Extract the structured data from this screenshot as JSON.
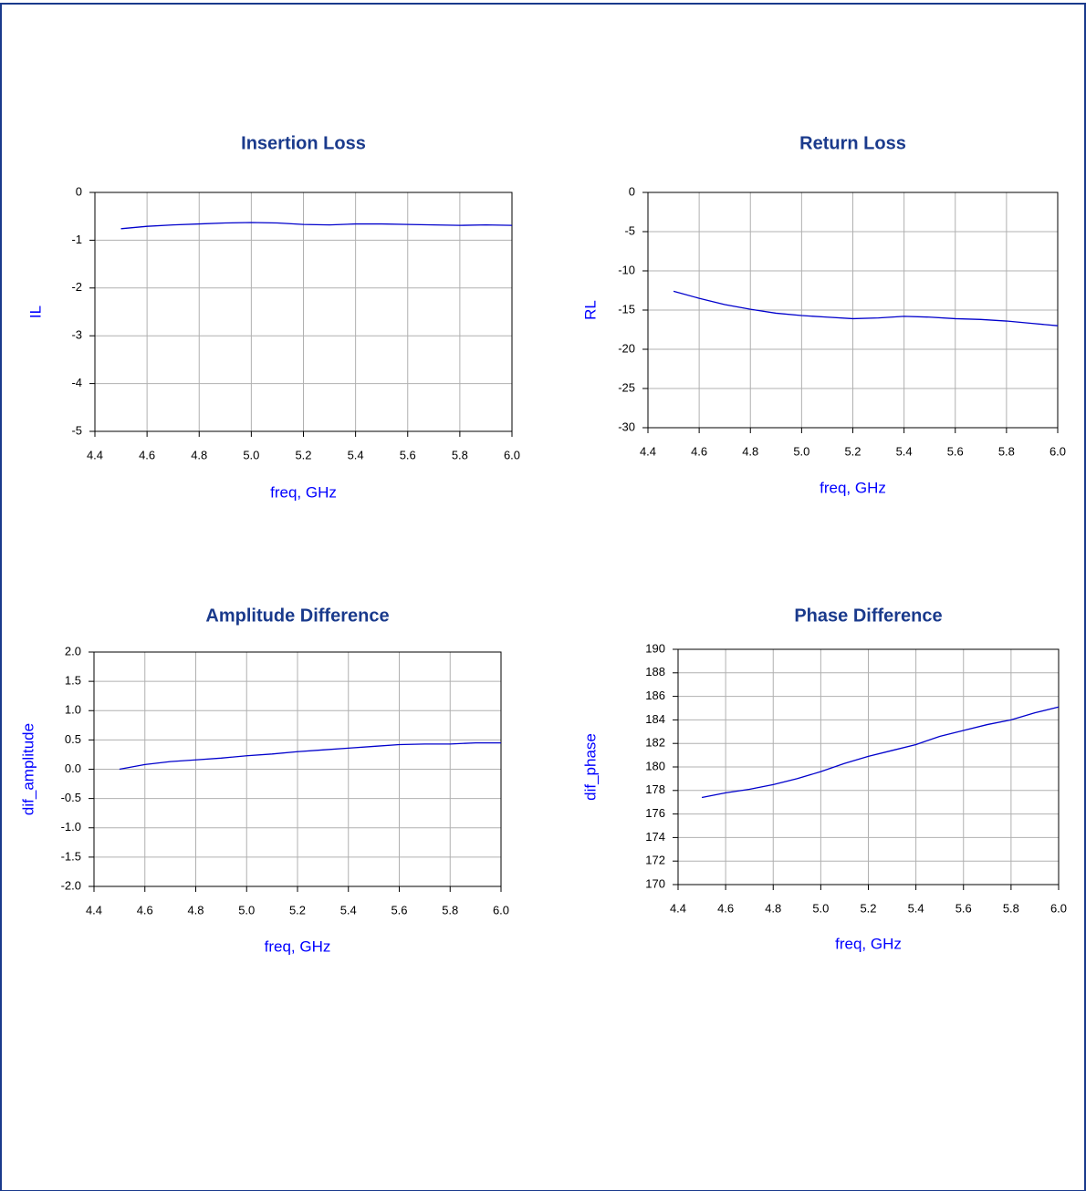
{
  "chart_data": [
    {
      "type": "line",
      "title": "Insertion Loss",
      "xlabel": "freq, GHz",
      "ylabel": "IL",
      "x": [
        4.5,
        4.6,
        4.7,
        4.8,
        4.9,
        5.0,
        5.1,
        5.2,
        5.3,
        5.4,
        5.5,
        5.6,
        5.7,
        5.8,
        5.9,
        6.0
      ],
      "series": [
        {
          "name": "IL",
          "color": "#0000cc",
          "values": [
            -0.76,
            -0.71,
            -0.68,
            -0.66,
            -0.64,
            -0.63,
            -0.64,
            -0.67,
            -0.68,
            -0.66,
            -0.66,
            -0.67,
            -0.68,
            -0.69,
            -0.68,
            -0.69
          ]
        }
      ],
      "xlim": [
        4.4,
        6.0
      ],
      "xticks": [
        4.4,
        4.6,
        4.8,
        {
          "value": 5,
          "label": "5.0"
        },
        5.2,
        5.4,
        5.6,
        5.8,
        {
          "value": 6,
          "label": "6.0"
        }
      ],
      "ylim": [
        -5,
        0
      ],
      "yticks": [
        0,
        -1,
        -2,
        -3,
        -4,
        -5
      ],
      "grid": true
    },
    {
      "type": "line",
      "title": "Return Loss",
      "xlabel": "freq, GHz",
      "ylabel": "RL",
      "x": [
        4.5,
        4.6,
        4.7,
        4.8,
        4.9,
        5.0,
        5.1,
        5.2,
        5.3,
        5.4,
        5.5,
        5.6,
        5.7,
        5.8,
        5.9,
        6.0
      ],
      "series": [
        {
          "name": "RL",
          "color": "#0000cc",
          "values": [
            -12.6,
            -13.5,
            -14.3,
            -14.9,
            -15.4,
            -15.7,
            -15.9,
            -16.1,
            -16.0,
            -15.8,
            -15.9,
            -16.1,
            -16.2,
            -16.4,
            -16.7,
            -17.0
          ]
        }
      ],
      "xlim": [
        4.4,
        6.0
      ],
      "xticks": [
        4.4,
        4.6,
        4.8,
        {
          "value": 5,
          "label": "5.0"
        },
        5.2,
        5.4,
        5.6,
        5.8,
        {
          "value": 6,
          "label": "6.0"
        }
      ],
      "ylim": [
        -30,
        0
      ],
      "yticks": [
        0,
        -5,
        -10,
        -15,
        -20,
        -25,
        -30
      ],
      "grid": true
    },
    {
      "type": "line",
      "title": "Amplitude Difference",
      "xlabel": "freq, GHz",
      "ylabel": "dif_amplitude",
      "x": [
        4.5,
        4.6,
        4.7,
        4.8,
        4.9,
        5.0,
        5.1,
        5.2,
        5.3,
        5.4,
        5.5,
        5.6,
        5.7,
        5.8,
        5.9,
        6.0
      ],
      "series": [
        {
          "name": "dif_amplitude",
          "color": "#0000cc",
          "values": [
            0.0,
            0.08,
            0.13,
            0.16,
            0.19,
            0.23,
            0.26,
            0.3,
            0.33,
            0.36,
            0.39,
            0.42,
            0.43,
            0.43,
            0.45,
            0.45
          ]
        }
      ],
      "xlim": [
        4.4,
        6.0
      ],
      "xticks": [
        4.4,
        4.6,
        4.8,
        {
          "value": 5,
          "label": "5.0"
        },
        5.2,
        5.4,
        5.6,
        5.8,
        {
          "value": 6,
          "label": "6.0"
        }
      ],
      "ylim": [
        -2,
        2
      ],
      "yticks": [
        {
          "value": 2,
          "label": "2.0"
        },
        1.5,
        {
          "value": 1,
          "label": "1.0"
        },
        0.5,
        {
          "value": 0,
          "label": "0.0"
        },
        -0.5,
        {
          "value": -1,
          "label": "-1.0"
        },
        -1.5,
        {
          "value": -2,
          "label": "-2.0"
        }
      ],
      "grid": true
    },
    {
      "type": "line",
      "title": "Phase Difference",
      "xlabel": "freq, GHz",
      "ylabel": "dif_phase",
      "x": [
        4.5,
        4.6,
        4.7,
        4.8,
        4.9,
        5.0,
        5.1,
        5.2,
        5.3,
        5.4,
        5.5,
        5.6,
        5.7,
        5.8,
        5.9,
        6.0
      ],
      "series": [
        {
          "name": "dif_phase",
          "color": "#0000cc",
          "values": [
            177.4,
            177.8,
            178.1,
            178.5,
            179.0,
            179.6,
            180.3,
            180.9,
            181.4,
            181.9,
            182.6,
            183.1,
            183.6,
            184.0,
            184.6,
            185.1
          ]
        }
      ],
      "xlim": [
        4.4,
        6.0
      ],
      "xticks": [
        4.4,
        4.6,
        4.8,
        {
          "value": 5,
          "label": "5.0"
        },
        5.2,
        5.4,
        5.6,
        5.8,
        {
          "value": 6,
          "label": "6.0"
        }
      ],
      "ylim": [
        170,
        190
      ],
      "yticks": [
        170,
        172,
        174,
        176,
        178,
        180,
        182,
        184,
        186,
        188,
        190
      ],
      "grid": true
    }
  ]
}
